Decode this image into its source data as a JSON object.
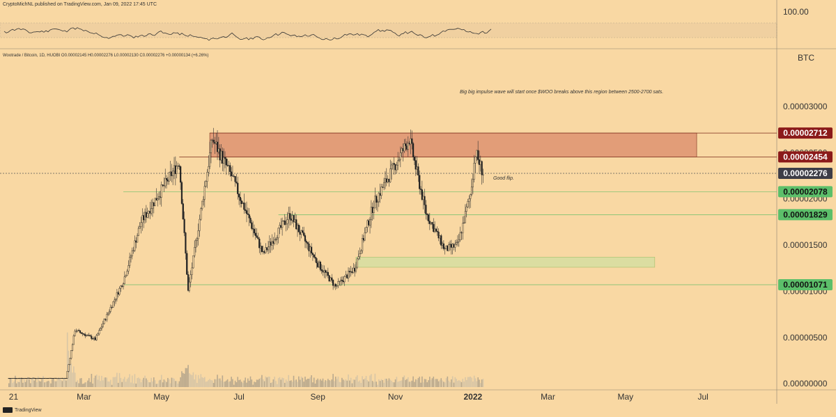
{
  "header": {
    "publisher_line": "CryptoMichNL published on TradingView.com, Jan 09, 2022 17:45 UTC",
    "symbol_line": "Wootrade / Bitcoin, 1D, HUOBI  O0.00002145  H0.00002276  L0.00002130  C0.00002276  +0.00000134 (+6.26%)"
  },
  "rsi_panel": {
    "axis_label": "100.00"
  },
  "footer": {
    "brand": "TradingView"
  },
  "colors": {
    "background": "#f9d8a3",
    "resistance_zone": "#d98a6a",
    "support_zone": "#cfe0a0",
    "badge_red": "#8b1a1a",
    "badge_dark": "#3d3d47",
    "badge_green": "#5cbf6a"
  },
  "chart_data": {
    "type": "candlestick",
    "title": "",
    "currency_label": "BTC",
    "x_ticks": [
      "21",
      "Mar",
      "May",
      "Jul",
      "Sep",
      "Nov",
      "2022",
      "Mar",
      "May",
      "Jul"
    ],
    "y_ticks": [
      3e-05,
      2.5e-05,
      2e-05,
      1.5e-05,
      1e-05,
      5e-06,
      0.0
    ],
    "y_tick_labels": [
      "0.00003000",
      "0.00002500",
      "0.00002000",
      "0.00001500",
      "0.00001000",
      "0.00000500",
      "0.00000000"
    ],
    "ylim": [
      -6.6e-07,
      3.436e-05
    ],
    "price_levels": [
      {
        "label": "0.00002712",
        "value": 2.712e-05,
        "style": "red"
      },
      {
        "label": "0.00002454",
        "value": 2.454e-05,
        "style": "red"
      },
      {
        "label": "0.00002276",
        "value": 2.276e-05,
        "style": "dark"
      },
      {
        "label": "0.00002078",
        "value": 2.078e-05,
        "style": "green"
      },
      {
        "label": "0.00001829",
        "value": 1.829e-05,
        "style": "green"
      },
      {
        "label": "0.00001071",
        "value": 1.071e-05,
        "style": "green"
      }
    ],
    "zones": [
      {
        "kind": "resistance",
        "from": 2.454e-05,
        "to": 2.712e-05
      },
      {
        "kind": "support",
        "from": 1.26e-05,
        "to": 1.37e-05
      }
    ],
    "annotations": [
      {
        "text": "Big big impulse wave will start once $WOO breaks above this region between 2500-2700 sats."
      },
      {
        "text": "Good flip."
      }
    ],
    "price_path": [
      {
        "date": "2021-01-01",
        "price": 6e-07
      },
      {
        "date": "2021-02-15",
        "price": 6e-07
      },
      {
        "date": "2021-02-22",
        "price": 5.8e-06
      },
      {
        "date": "2021-03-10",
        "price": 4.8e-06
      },
      {
        "date": "2021-04-01",
        "price": 1.11e-05
      },
      {
        "date": "2021-04-15",
        "price": 1.75e-05
      },
      {
        "date": "2021-05-15",
        "price": 2.4e-05
      },
      {
        "date": "2021-05-22",
        "price": 1e-05
      },
      {
        "date": "2021-06-10",
        "price": 2.65e-05
      },
      {
        "date": "2021-06-25",
        "price": 2.25e-05
      },
      {
        "date": "2021-07-20",
        "price": 1.4e-05
      },
      {
        "date": "2021-08-10",
        "price": 1.83e-05
      },
      {
        "date": "2021-09-01",
        "price": 1.3e-05
      },
      {
        "date": "2021-09-15",
        "price": 1.05e-05
      },
      {
        "date": "2021-09-30",
        "price": 1.25e-05
      },
      {
        "date": "2021-10-15",
        "price": 1.95e-05
      },
      {
        "date": "2021-11-12",
        "price": 2.65e-05
      },
      {
        "date": "2021-11-25",
        "price": 1.85e-05
      },
      {
        "date": "2021-12-10",
        "price": 1.45e-05
      },
      {
        "date": "2021-12-20",
        "price": 1.5e-05
      },
      {
        "date": "2021-12-30",
        "price": 2.05e-05
      },
      {
        "date": "2022-01-03",
        "price": 2.5e-05
      },
      {
        "date": "2022-01-09",
        "price": 2.28e-05
      }
    ],
    "grid": false,
    "legend": "none"
  }
}
